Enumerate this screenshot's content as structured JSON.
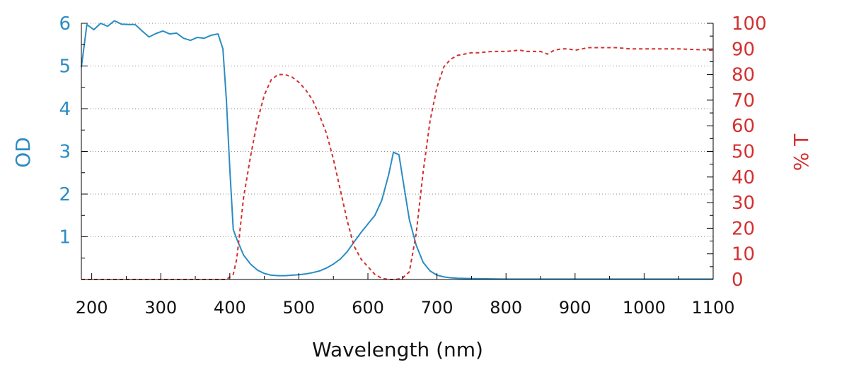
{
  "chart_data": {
    "type": "line",
    "xlabel": "Wavelength (nm)",
    "ylabel_left": "OD",
    "ylabel_right": "% T",
    "xlim": [
      185,
      1100
    ],
    "ylim_left": [
      0,
      6
    ],
    "ylim_right": [
      0,
      100
    ],
    "x_ticks": [
      "200",
      "300",
      "400",
      "500",
      "600",
      "700",
      "800",
      "900",
      "1000",
      "1100"
    ],
    "y_left_ticks": [
      "1",
      "2",
      "3",
      "4",
      "5",
      "6"
    ],
    "y_right_ticks": [
      "0",
      "10",
      "20",
      "30",
      "40",
      "50",
      "60",
      "70",
      "80",
      "90",
      "100"
    ],
    "grid": "horizontal dotted",
    "colors": {
      "od": "#2b8cc4",
      "transmission": "#d43030",
      "axis": "#000000"
    },
    "series": [
      {
        "axis": "left",
        "style": "solid",
        "x": [
          185,
          193,
          203,
          213,
          223,
          233,
          243,
          253,
          263,
          273,
          283,
          293,
          303,
          313,
          323,
          333,
          343,
          353,
          363,
          373,
          383,
          390,
          395,
          400,
          405,
          410,
          420,
          430,
          440,
          450,
          460,
          470,
          480,
          490,
          500,
          510,
          520,
          530,
          540,
          550,
          560,
          570,
          580,
          590,
          600,
          610,
          620,
          630,
          637,
          645,
          652,
          660,
          670,
          680,
          690,
          700,
          710,
          720,
          730,
          750,
          800,
          850,
          900,
          950,
          1000,
          1050,
          1100
        ],
        "y": [
          4.97,
          5.97,
          5.85,
          6.0,
          5.93,
          6.06,
          5.98,
          5.97,
          5.97,
          5.82,
          5.68,
          5.76,
          5.82,
          5.75,
          5.77,
          5.65,
          5.6,
          5.67,
          5.65,
          5.72,
          5.75,
          5.4,
          4.2,
          2.6,
          1.17,
          0.95,
          0.57,
          0.36,
          0.22,
          0.14,
          0.1,
          0.09,
          0.09,
          0.1,
          0.11,
          0.13,
          0.16,
          0.2,
          0.27,
          0.36,
          0.48,
          0.65,
          0.88,
          1.1,
          1.3,
          1.5,
          1.85,
          2.45,
          2.98,
          2.92,
          2.2,
          1.4,
          0.8,
          0.4,
          0.2,
          0.1,
          0.06,
          0.04,
          0.03,
          0.02,
          0.01,
          0.01,
          0.01,
          0.01,
          0.01,
          0.01,
          0.01
        ]
      },
      {
        "axis": "right",
        "style": "dashed",
        "x": [
          185,
          250,
          300,
          350,
          395,
          405,
          410,
          415,
          420,
          430,
          440,
          450,
          460,
          470,
          480,
          490,
          500,
          510,
          520,
          530,
          540,
          550,
          560,
          570,
          580,
          590,
          600,
          610,
          620,
          630,
          640,
          650,
          660,
          670,
          680,
          690,
          700,
          710,
          720,
          730,
          740,
          750,
          760,
          780,
          800,
          820,
          830,
          840,
          850,
          860,
          870,
          880,
          890,
          900,
          920,
          940,
          960,
          980,
          1000,
          1050,
          1100
        ],
        "y": [
          0,
          0,
          0,
          0,
          0,
          2,
          8,
          20,
          32,
          48,
          62,
          72,
          78,
          80,
          80,
          79,
          77,
          74,
          70,
          64,
          57,
          47,
          35,
          23,
          13,
          8,
          5,
          2,
          0.5,
          0,
          0,
          0.5,
          3,
          18,
          42,
          62,
          75,
          83,
          86,
          87.5,
          88,
          88.5,
          88.5,
          89,
          89,
          89.5,
          89,
          89,
          89,
          88,
          89.5,
          90,
          90,
          89.5,
          90.5,
          90.5,
          90.5,
          90,
          90,
          90,
          89.5
        ]
      }
    ]
  }
}
